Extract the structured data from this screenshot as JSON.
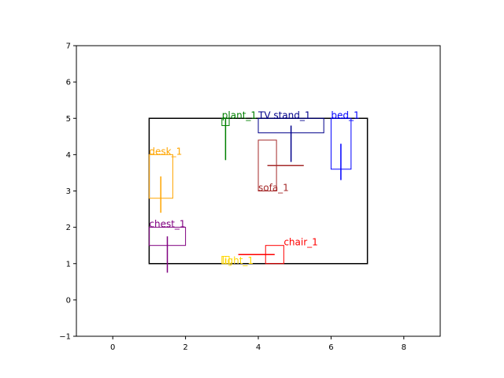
{
  "chart_data": {
    "type": "scatter",
    "title": "",
    "xlabel": "",
    "ylabel": "",
    "xlim": [
      -1,
      9
    ],
    "ylim": [
      -1,
      7
    ],
    "xticks": [
      0,
      2,
      4,
      6,
      8
    ],
    "yticks": [
      -1,
      0,
      1,
      2,
      3,
      4,
      5,
      6,
      7
    ],
    "grid": false,
    "room": {
      "x0": 1,
      "y0": 1,
      "x1": 7,
      "y1": 5,
      "color": "#000000"
    },
    "objects": [
      {
        "name": "plant_1",
        "color": "#008000",
        "rect": [
          3.0,
          4.8,
          3.2,
          5.0
        ],
        "line": [
          [
            3.1,
            3.85
          ],
          [
            3.1,
            5.0
          ]
        ],
        "label_at": [
          3.0,
          5.0
        ]
      },
      {
        "name": "TV stand_1",
        "color": "#00008b",
        "rect": [
          4.0,
          4.6,
          5.8,
          5.0
        ],
        "line": [
          [
            4.9,
            3.8
          ],
          [
            4.9,
            4.8
          ]
        ],
        "label_at": [
          4.0,
          5.0
        ]
      },
      {
        "name": "bed_1",
        "color": "#0000ff",
        "rect": [
          6.0,
          3.6,
          6.55,
          5.0
        ],
        "line": [
          [
            6.27,
            3.3
          ],
          [
            6.27,
            4.3
          ]
        ],
        "label_at": [
          6.0,
          5.0
        ]
      },
      {
        "name": "desk_1",
        "color": "#ffa500",
        "rect": [
          1.0,
          2.8,
          1.65,
          4.0
        ],
        "line": [
          [
            1.32,
            2.4
          ],
          [
            1.32,
            3.4
          ]
        ],
        "label_at": [
          1.0,
          4.0
        ]
      },
      {
        "name": "sofa_1",
        "color": "#a52a2a",
        "rect": [
          4.0,
          3.0,
          4.5,
          4.4
        ],
        "line": [
          [
            4.25,
            3.7
          ],
          [
            5.25,
            3.7
          ]
        ],
        "label_at": [
          4.0,
          3.0
        ]
      },
      {
        "name": "chest_1",
        "color": "#800080",
        "rect": [
          1.0,
          1.5,
          2.0,
          2.0
        ],
        "line": [
          [
            1.5,
            0.75
          ],
          [
            1.5,
            1.75
          ]
        ],
        "label_at": [
          1.0,
          2.0
        ]
      },
      {
        "name": "chair_1",
        "color": "#ff0000",
        "rect": [
          4.2,
          1.0,
          4.7,
          1.5
        ],
        "line": [
          [
            3.45,
            1.25
          ],
          [
            4.45,
            1.25
          ]
        ],
        "label_at": [
          4.7,
          1.5
        ]
      },
      {
        "name": "light_1",
        "color": "#ffd700",
        "rect": [
          3.0,
          1.0,
          3.2,
          1.2
        ],
        "line": [
          [
            3.1,
            1.0
          ],
          [
            3.1,
            1.15
          ]
        ],
        "label_at": [
          3.0,
          1.0
        ]
      }
    ]
  }
}
